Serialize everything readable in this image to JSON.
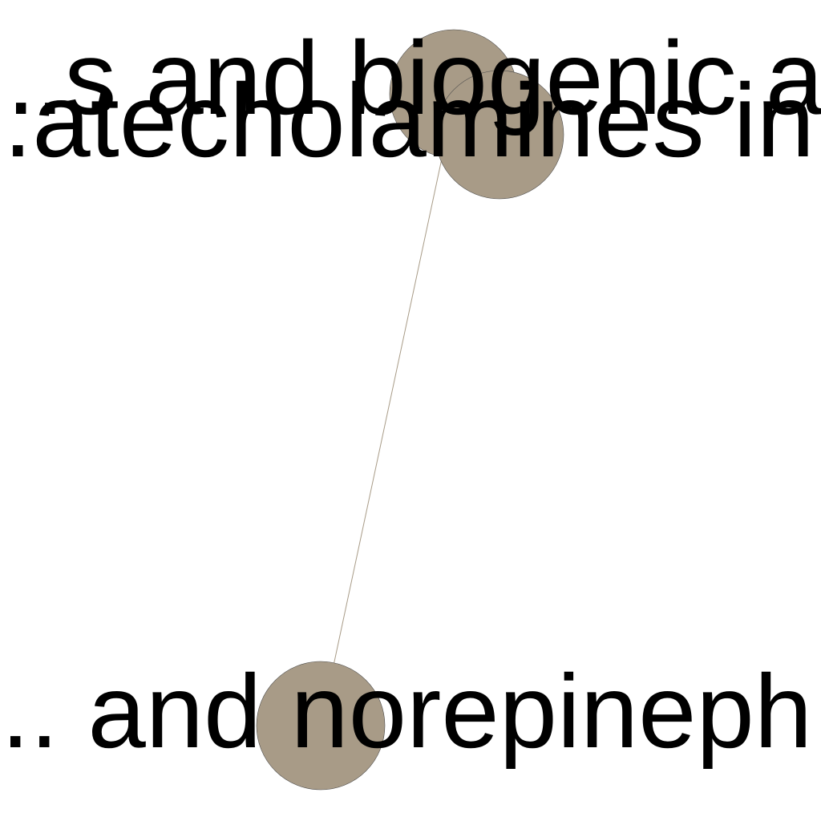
{
  "graph": {
    "colors": {
      "node_fill": "#a89b87",
      "node_stroke": "#4a4a4a",
      "edge": "#a89b87",
      "label": "#000000"
    },
    "nodes": [
      {
        "id": "node-biogenic",
        "label": "...s and biogenic a..."
      },
      {
        "id": "node-catecholamines",
        "label": "...atecholamines in..."
      },
      {
        "id": "node-norepinephrine",
        "label": "... and norepineph..."
      }
    ],
    "edges": [
      {
        "source": "node-catecholamines",
        "target": "node-norepinephrine"
      }
    ]
  }
}
